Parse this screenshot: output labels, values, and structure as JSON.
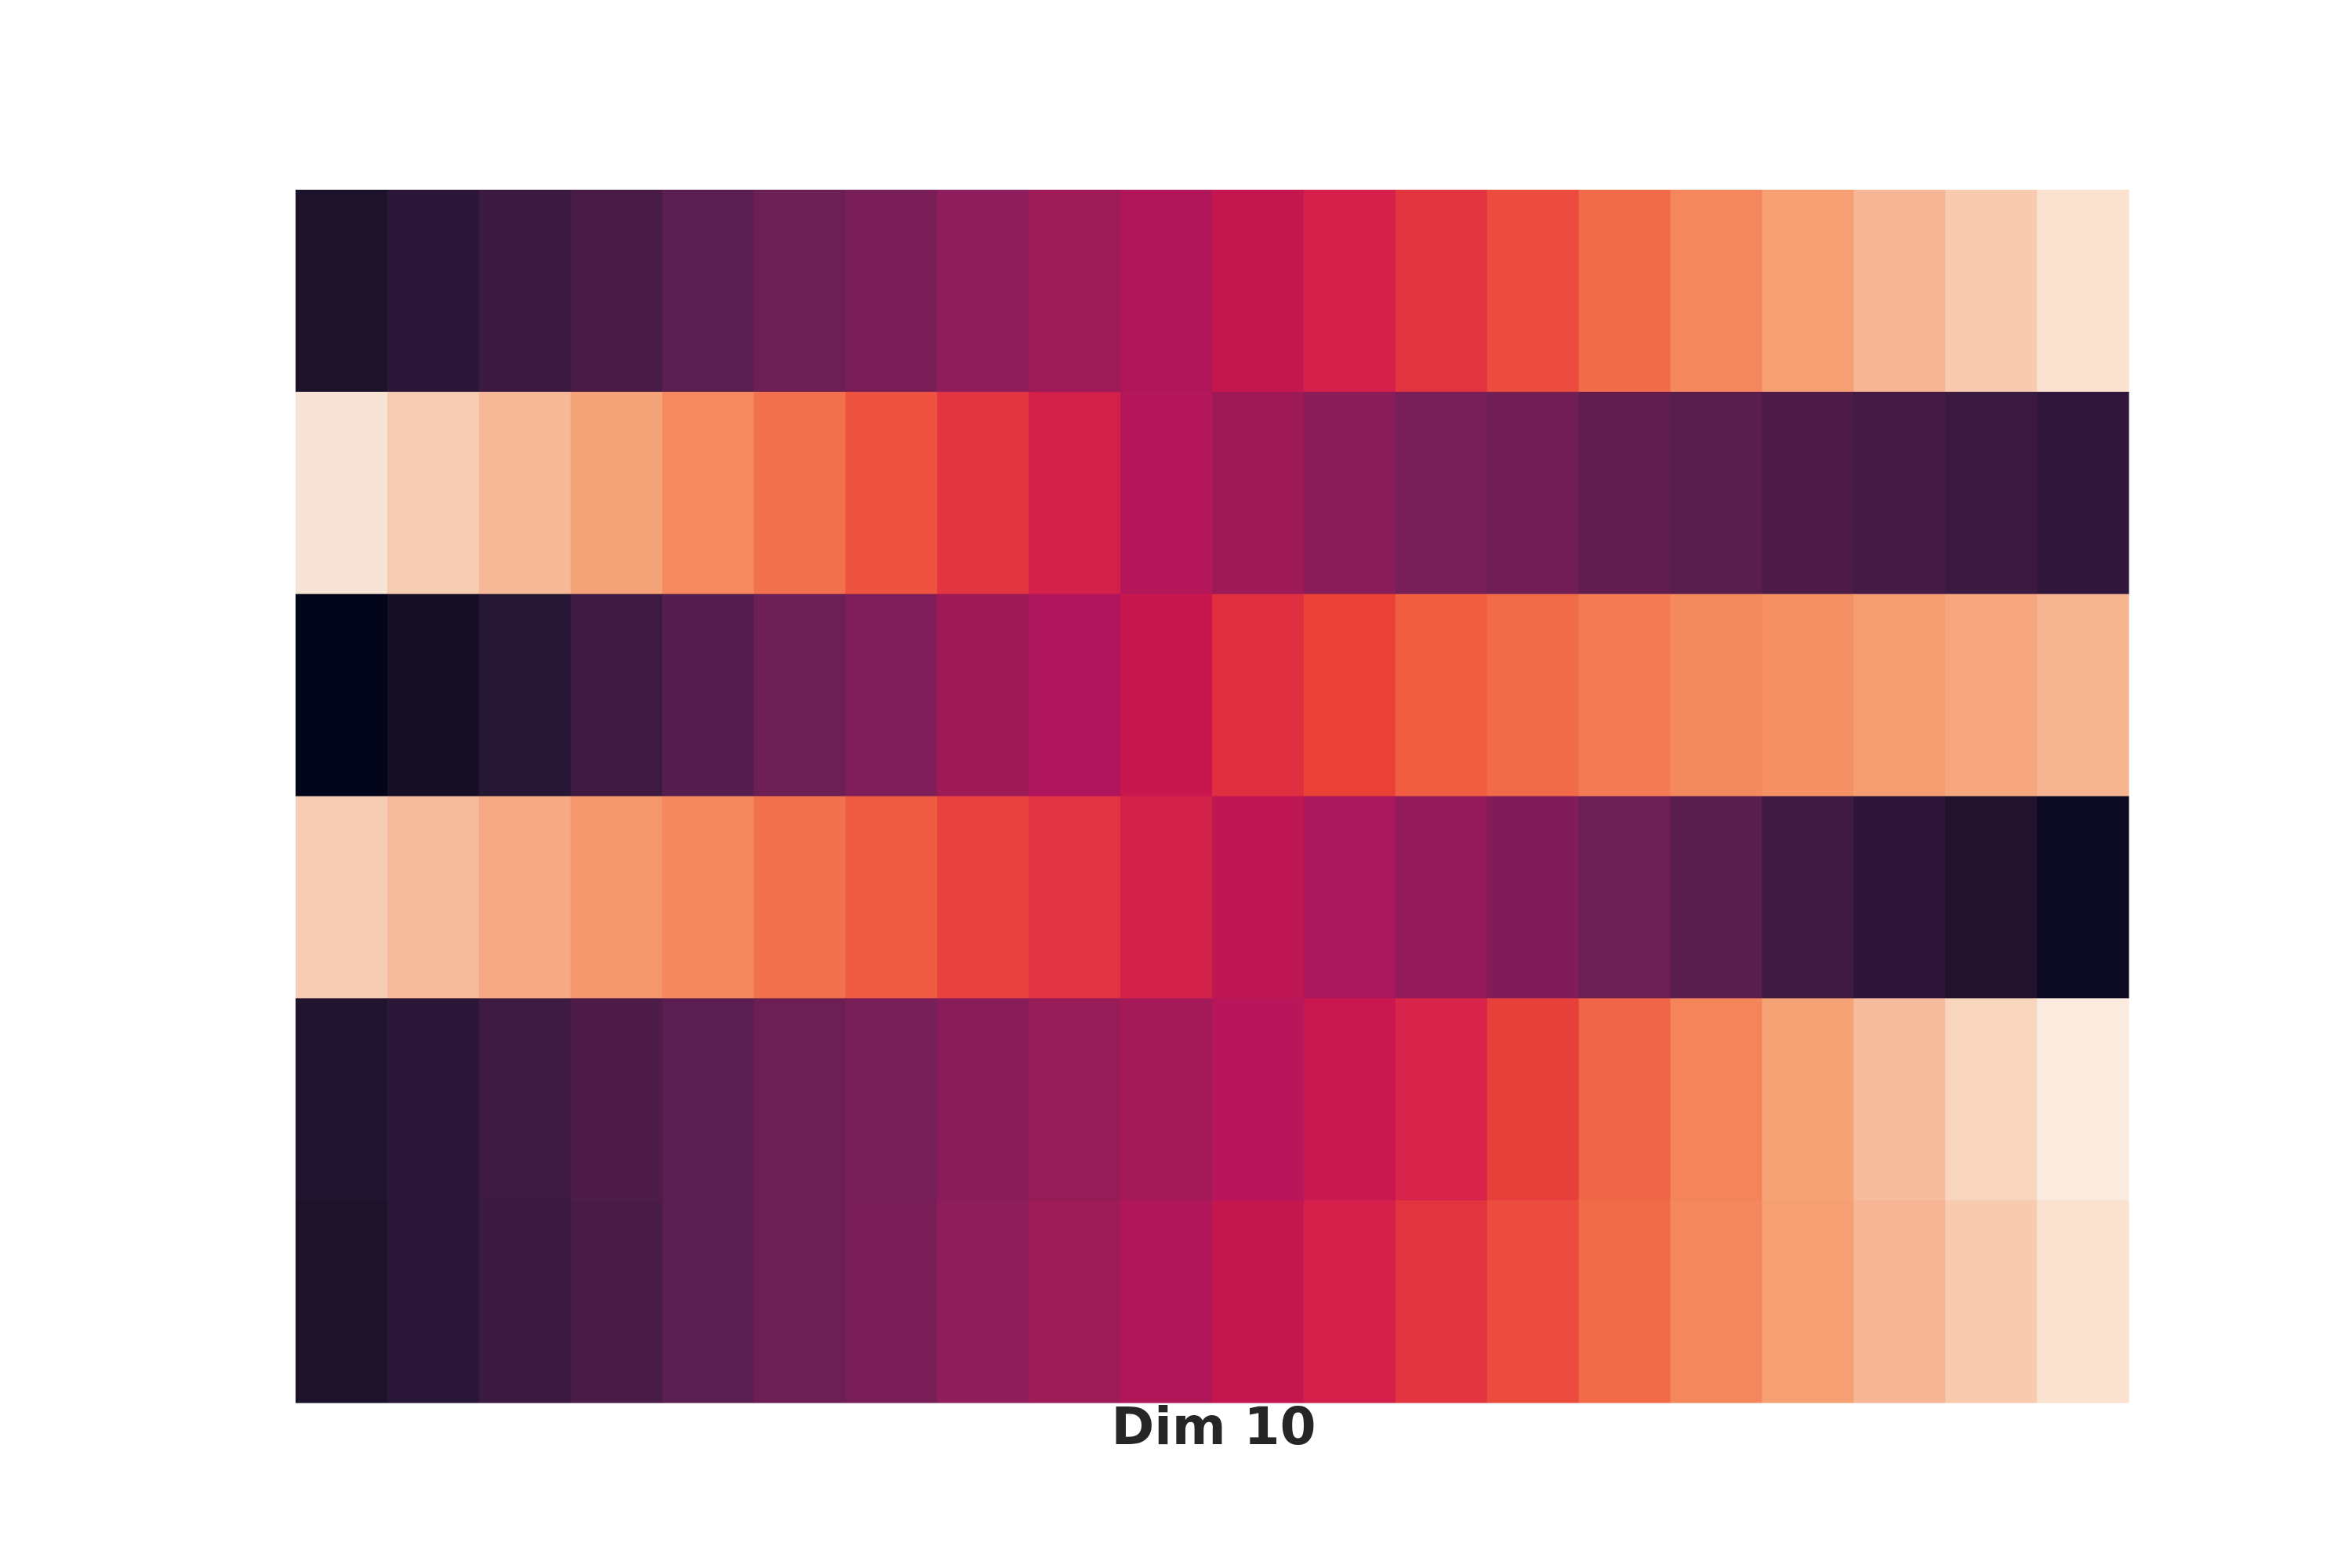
{
  "chart_data": {
    "type": "heatmap",
    "xlabel": "Dim 10",
    "rows": 6,
    "cols": 20,
    "colors": [
      [
        "#1c1229",
        "#2a1636",
        "#3a1a41",
        "#491c47",
        "#5b1e51",
        "#6b1f52",
        "#7a1e58",
        "#8e1d5b",
        "#9d1b57",
        "#b01759",
        "#c4174f",
        "#d4204a",
        "#e2343e",
        "#ec4c3e",
        "#f26b49",
        "#f5875e",
        "#f59f73",
        "#f6b695",
        "#f8cbb0",
        "#fae1d0"
      ],
      [
        "#f7e4d6",
        "#f6cdb3",
        "#f6b998",
        "#f5a47a",
        "#f5895f",
        "#f1704d",
        "#ed533f",
        "#e33442",
        "#d2204a",
        "#b4175a",
        "#9e1a57",
        "#891d5a",
        "#781e58",
        "#721e56",
        "#621d50",
        "#591d4e",
        "#4e1c48",
        "#441b44",
        "#3a1a40",
        "#30173b"
      ],
      [
        "#03051a",
        "#170f26",
        "#261735",
        "#3e1a42",
        "#541e4e",
        "#6c1f53",
        "#7f1e58",
        "#9d1a57",
        "#af165b",
        "#c8174e",
        "#df2e3f",
        "#ea4136",
        "#f05d41",
        "#f16b48",
        "#f37b55",
        "#f3895f",
        "#f58f64",
        "#f59d70",
        "#f6a77d",
        "#f6b590"
      ],
      [
        "#f6cdb2",
        "#f6bb9c",
        "#f6aa84",
        "#f5976c",
        "#f4895e",
        "#f1714d",
        "#ee5b41",
        "#e8423f",
        "#e13342",
        "#d2224a",
        "#bf1654",
        "#aa175b",
        "#951a5b",
        "#811c59",
        "#6c1f53",
        "#591d4e",
        "#3f1b42",
        "#2f1639",
        "#20132b",
        "#0b0a22"
      ],
      [
        "#211430",
        "#2d1739",
        "#3c1a42",
        "#4d1c48",
        "#5b1e51",
        "#6c1f53",
        "#781e58",
        "#891d5a",
        "#961c59",
        "#a41a58",
        "#b7165a",
        "#c9174f",
        "#d8244a",
        "#e7403a",
        "#f06447",
        "#f48459",
        "#f5a275",
        "#f6bc9d",
        "#f8d5bd",
        "#fbebde"
      ],
      [
        "#1c1229",
        "#2a1636",
        "#3a1a41",
        "#491c47",
        "#5b1e51",
        "#6b1f52",
        "#7a1e58",
        "#8e1d5b",
        "#9d1b57",
        "#b01759",
        "#c4174f",
        "#d4204a",
        "#e2343e",
        "#ec4c3e",
        "#f26b49",
        "#f5875e",
        "#f59f73",
        "#f6b695",
        "#f8cbb0",
        "#fae1d0"
      ]
    ]
  }
}
